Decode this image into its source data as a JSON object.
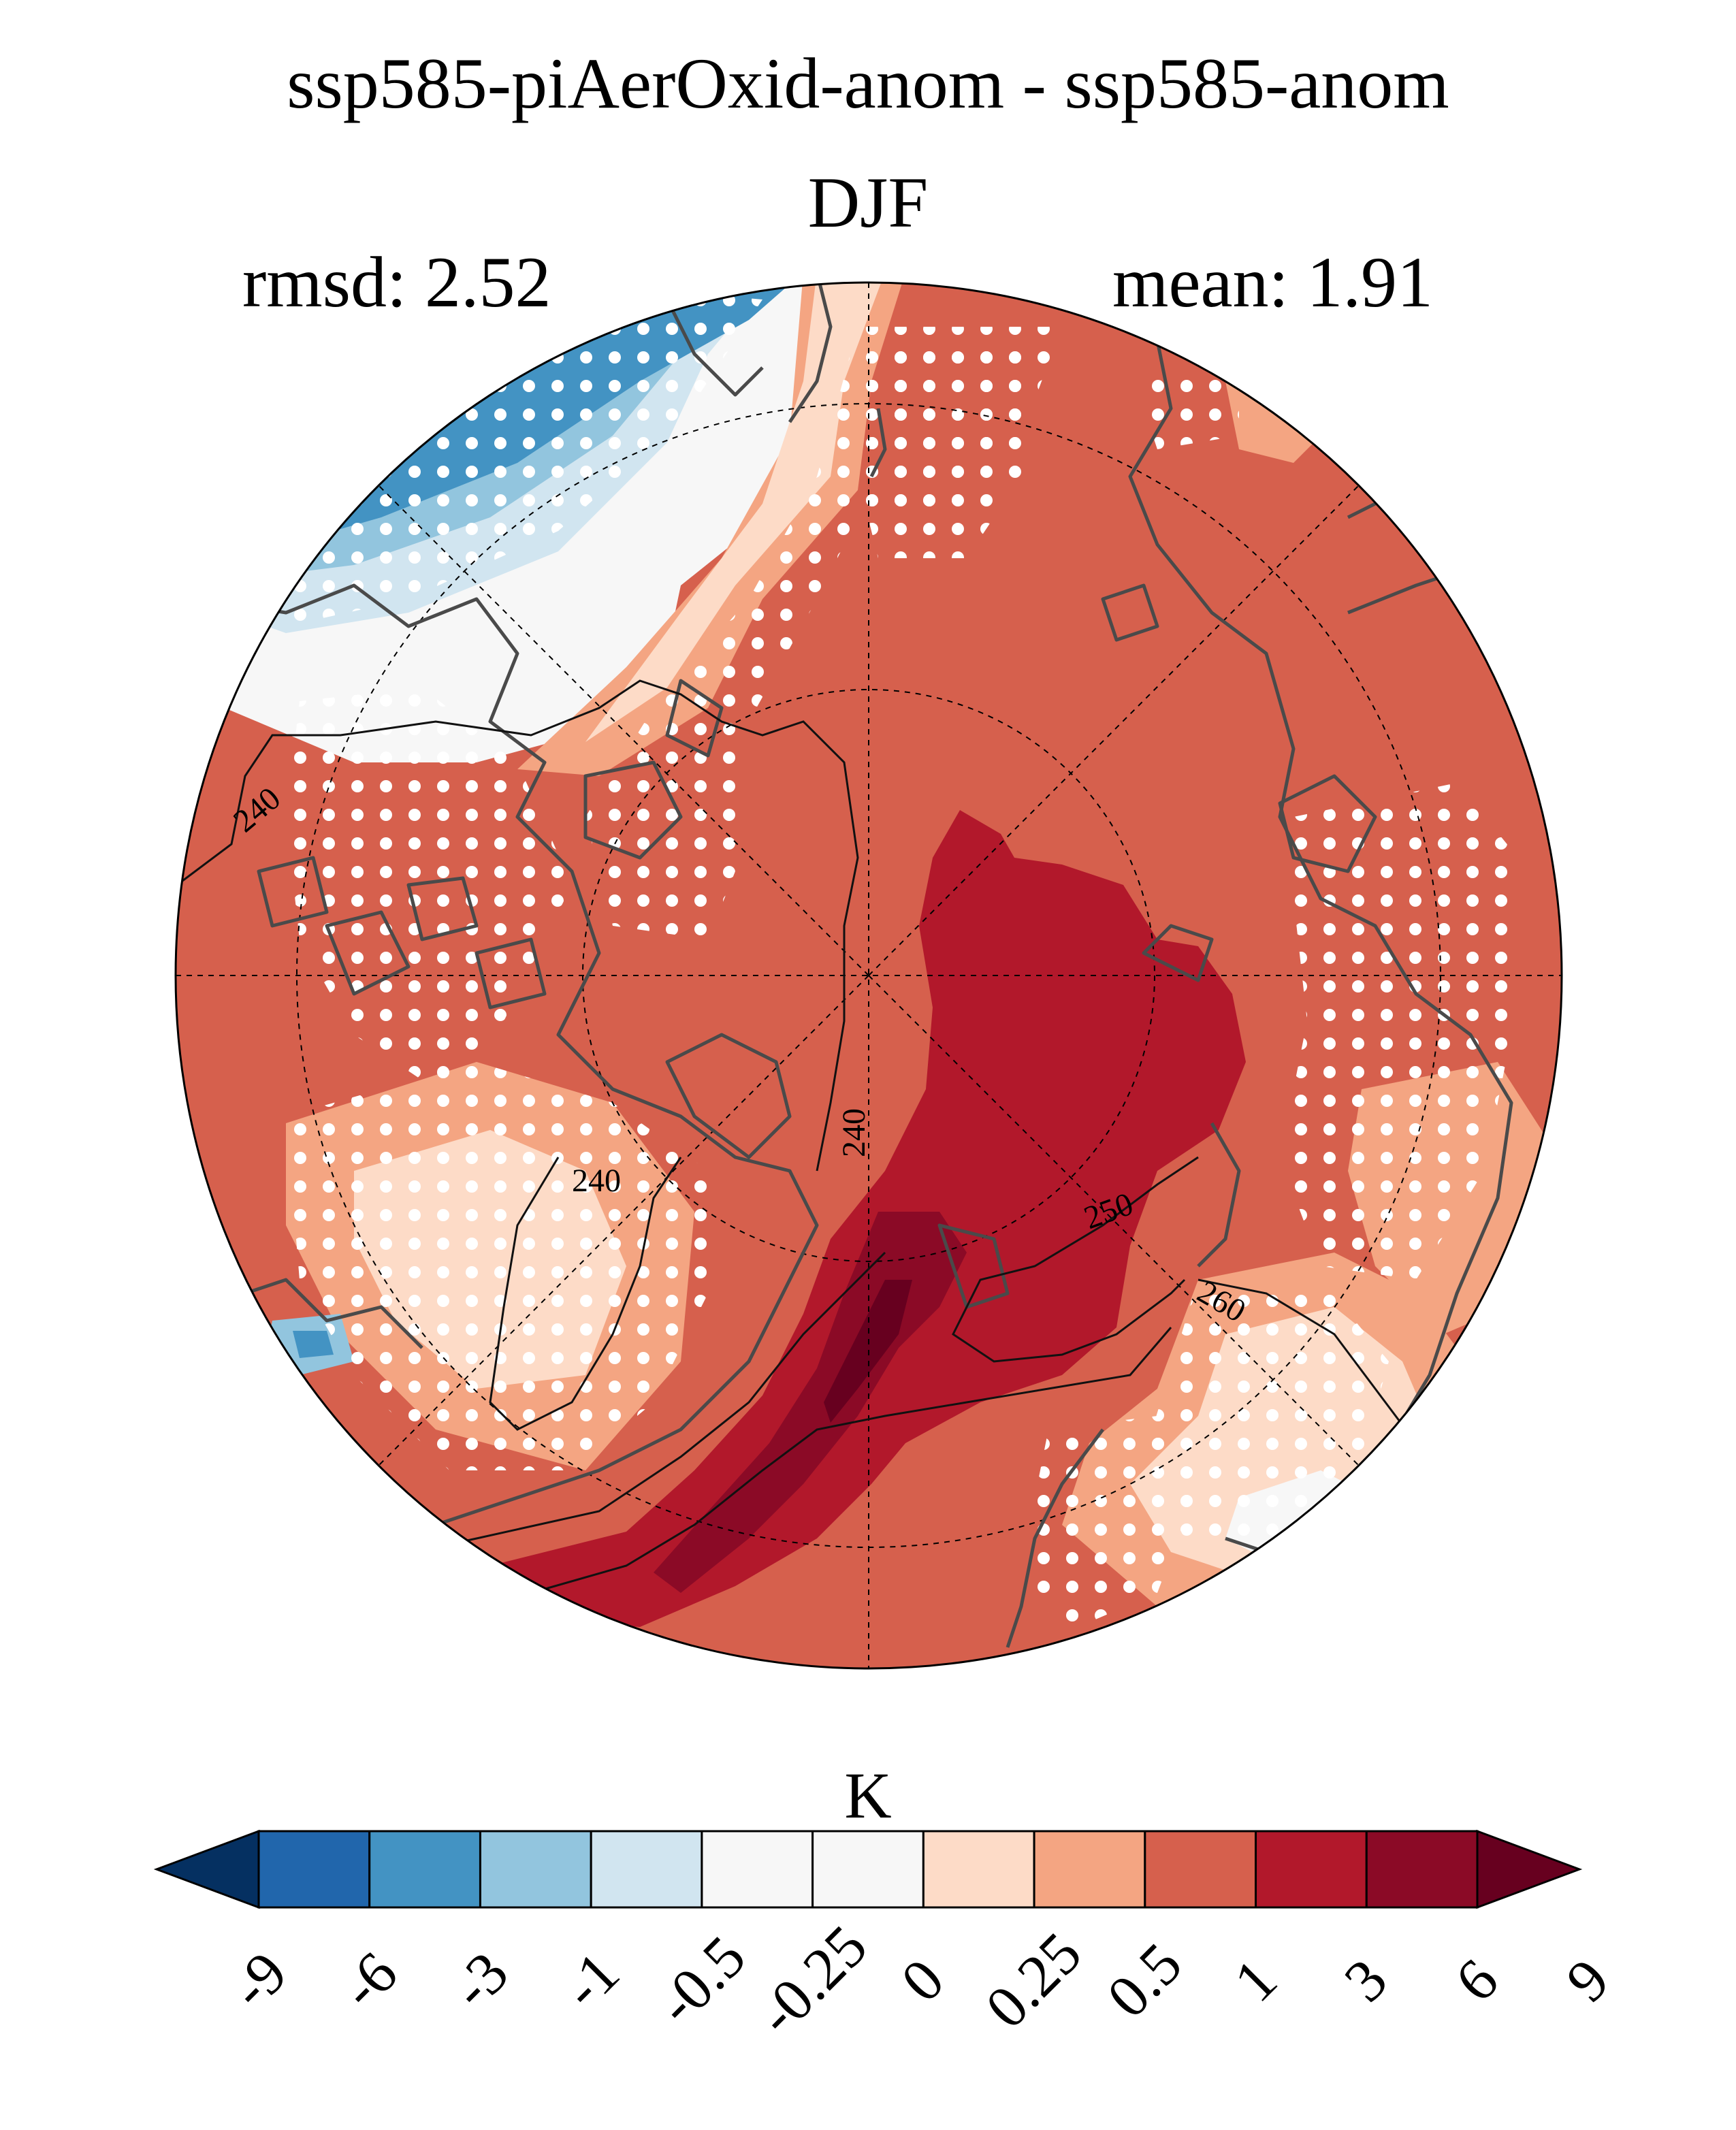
{
  "header": {
    "title": "ssp585-piAerOxid-anom - ssp585-anom",
    "season": "DJF",
    "rmsd_label": "rmsd: 2.52",
    "mean_label": "mean: 1.91"
  },
  "colorbar": {
    "unit": "K",
    "ticks": [
      "-9",
      "-6",
      "-3",
      "-1",
      "-0.5",
      "-0.25",
      "0",
      "0.25",
      "0.5",
      "1",
      "3",
      "6",
      "9"
    ],
    "colors": [
      "#053061",
      "#2166ac",
      "#4393c3",
      "#92c5de",
      "#d1e5f0",
      "#f7f7f7",
      "#f7f7f7",
      "#fddbc7",
      "#f4a582",
      "#d6604d",
      "#b2182b",
      "#8b0a26",
      "#67001f"
    ],
    "extend": "both"
  },
  "map": {
    "projection": "north polar stereographic",
    "field": "temperature anomaly difference",
    "contour_labels": [
      "240",
      "240",
      "240",
      "250",
      "260"
    ],
    "stippling": "significance dots",
    "colors": {
      "ocean_fill": "#d6604d",
      "strong_warm": "#b2182b",
      "strongest_warm": "#8b0a26",
      "cool_blue": "#4393c3",
      "coastline": "#4a4a4a"
    }
  }
}
